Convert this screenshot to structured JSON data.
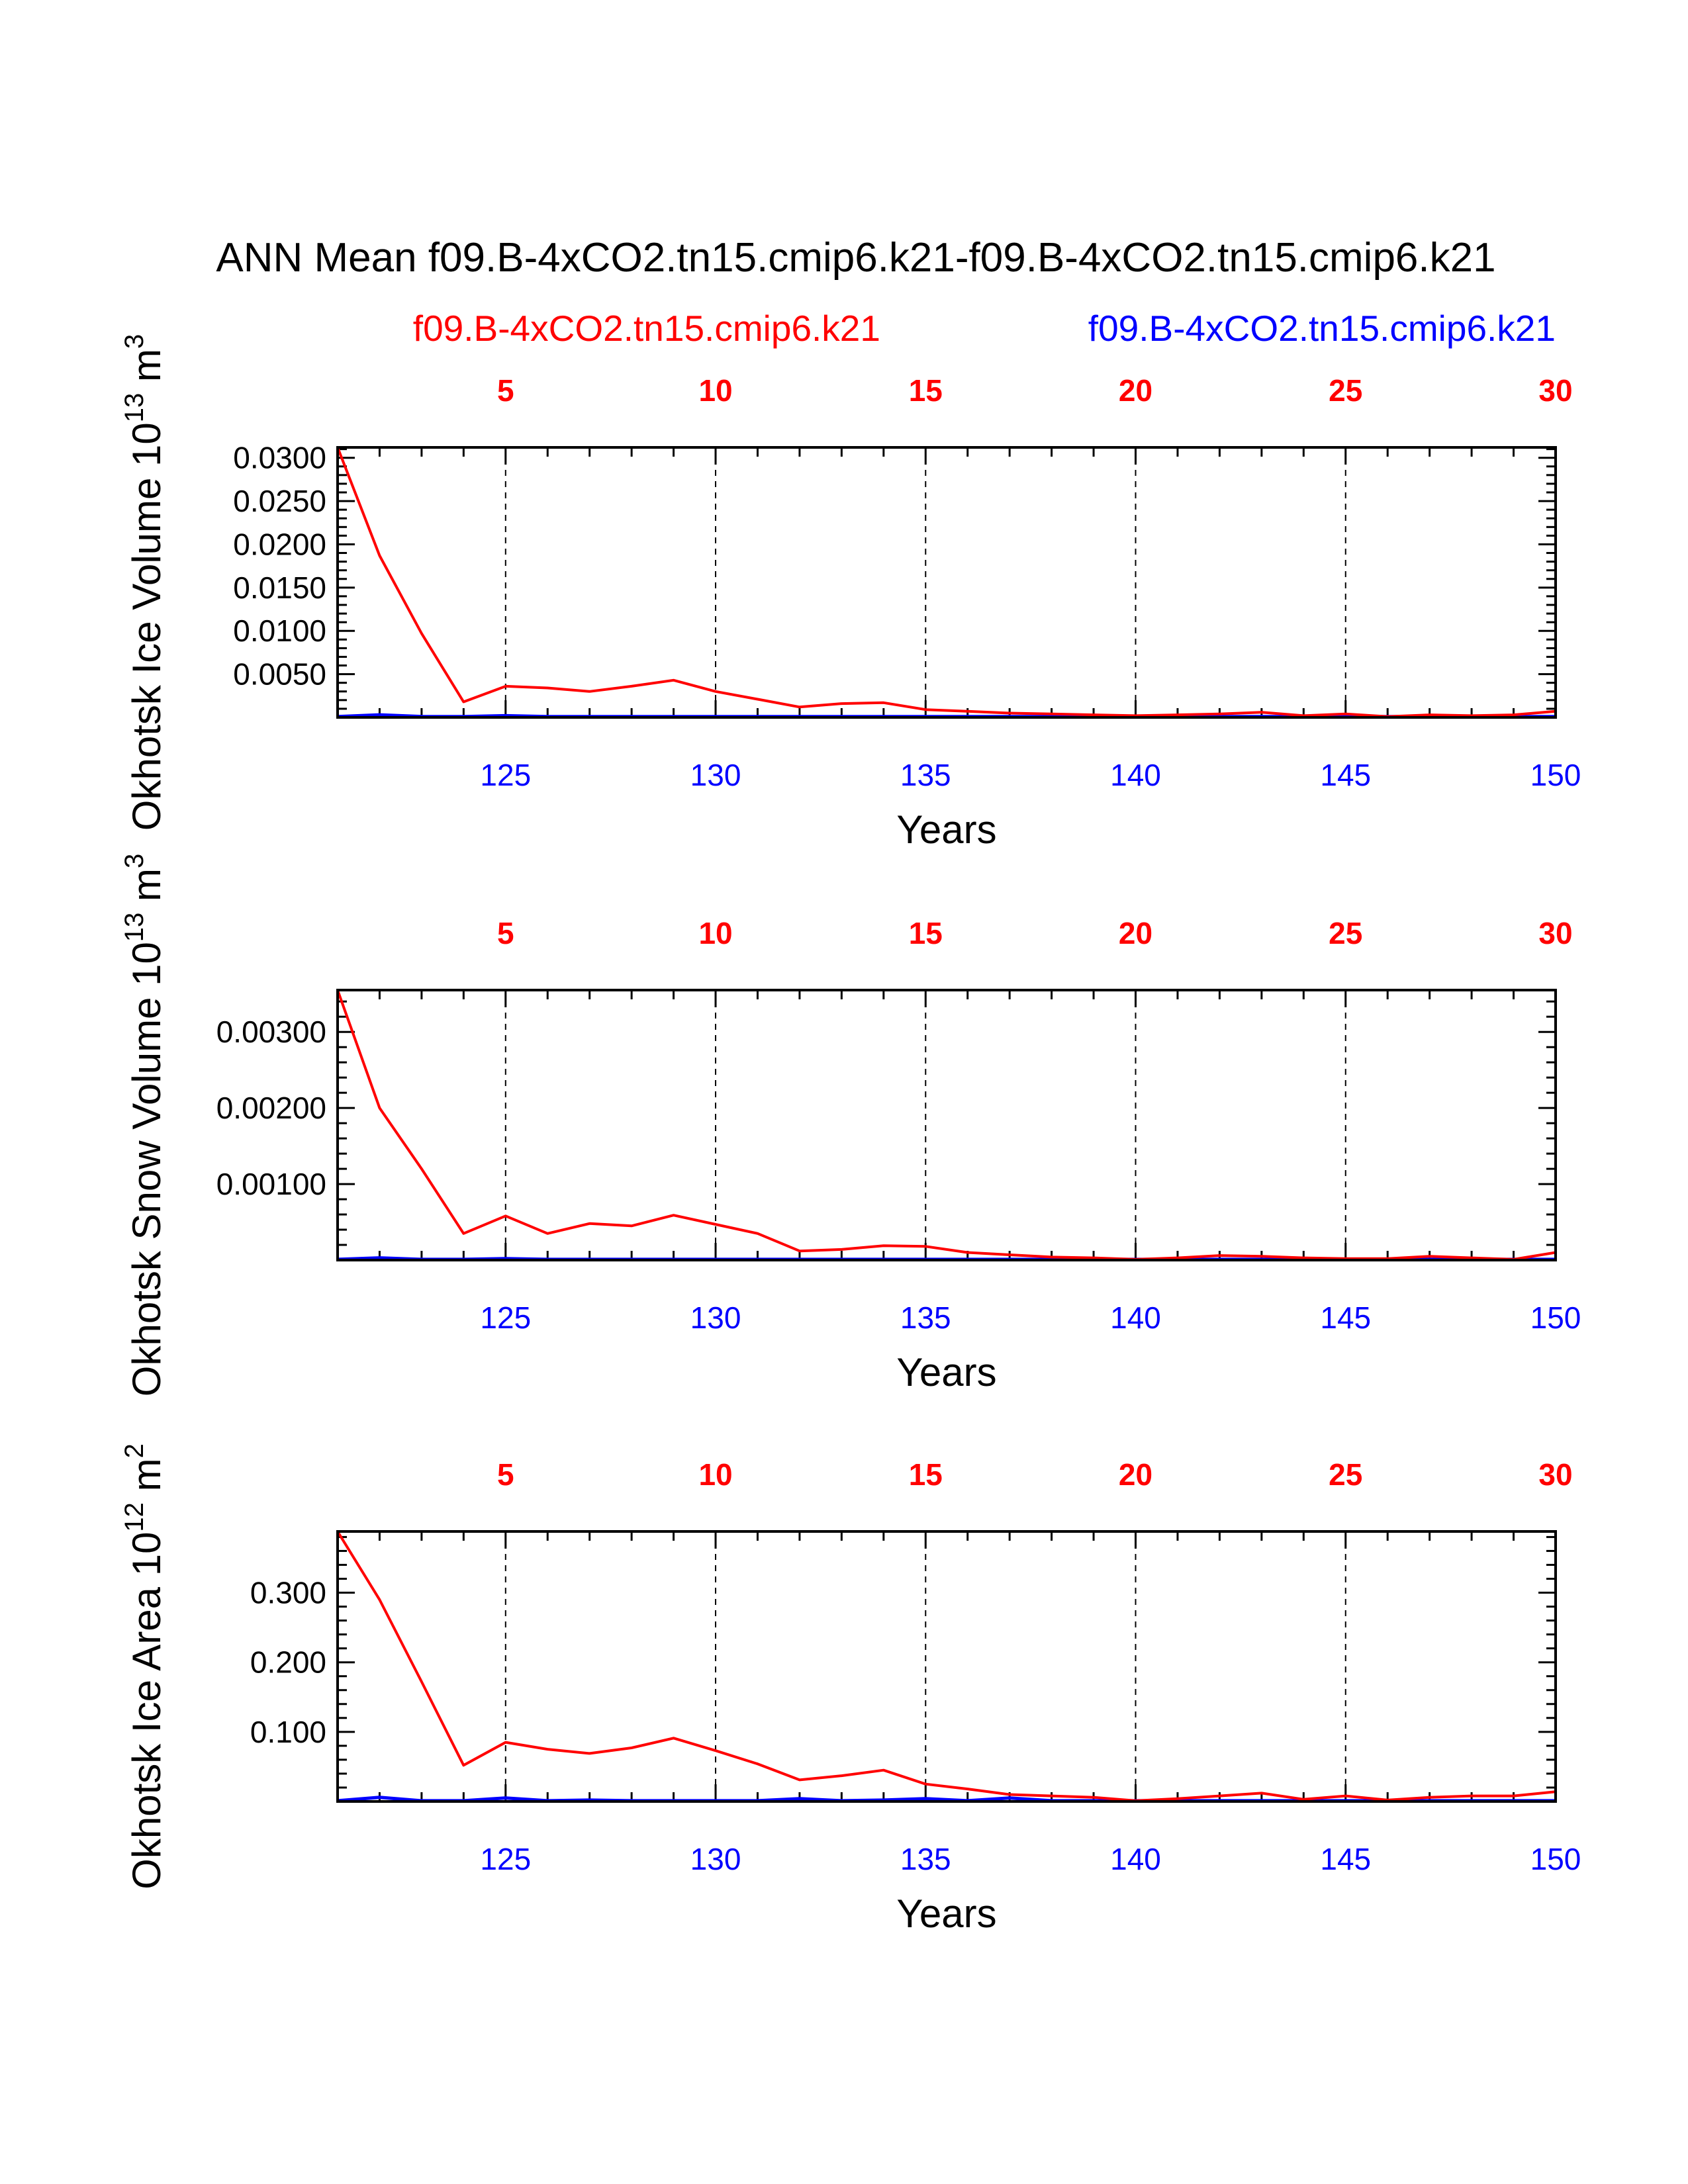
{
  "title": "ANN Mean f09.B-4xCO2.tn15.cmip6.k21-f09.B-4xCO2.tn15.cmip6.k21",
  "legend": {
    "red_label": "f09.B-4xCO2.tn15.cmip6.k21",
    "blue_label": "f09.B-4xCO2.tn15.cmip6.k21"
  },
  "colors": {
    "red": "#ff0000",
    "blue": "#0000ff",
    "axis": "#000000"
  },
  "chart_data": [
    {
      "type": "line",
      "title": "ANN Mean f09.B-4xCO2.tn15.cmip6.k21-f09.B-4xCO2.tn15.cmip6.k21",
      "ylabel": "Okhotsk Ice Volume 10",
      "ylabel_exp": "13",
      "ylabel_unit": "m",
      "ylabel_unit_exp": "3",
      "xlabel": "Years",
      "xlim": [
        121,
        150
      ],
      "ylim": [
        0,
        0.0312
      ],
      "yticks": [
        0.005,
        0.01,
        0.015,
        0.02,
        0.025,
        0.03
      ],
      "ytick_labels": [
        "0.0050",
        "0.0100",
        "0.0150",
        "0.0200",
        "0.0250",
        "0.0300"
      ],
      "bottom_ticks": [
        125,
        130,
        135,
        140,
        145,
        150
      ],
      "bottom_tick_labels": [
        "125",
        "130",
        "135",
        "140",
        "145",
        "150"
      ],
      "top_ticks": [
        125,
        130,
        135,
        140,
        145,
        150
      ],
      "top_tick_labels": [
        "5",
        "10",
        "15",
        "20",
        "25",
        "30"
      ],
      "grid": "dashed vertical lines at major ticks",
      "x": [
        121,
        122,
        123,
        124,
        125,
        126,
        127,
        128,
        129,
        130,
        131,
        132,
        133,
        134,
        135,
        136,
        137,
        138,
        139,
        140,
        141,
        142,
        143,
        144,
        145,
        146,
        147,
        148,
        149,
        150
      ],
      "series": [
        {
          "name": "f09.B-4xCO2.tn15.cmip6.k21",
          "color": "red",
          "values": [
            0.0312,
            0.0187,
            0.0097,
            0.0018,
            0.0036,
            0.0034,
            0.003,
            0.0036,
            0.0043,
            0.003,
            0.0021,
            0.0012,
            0.0016,
            0.0017,
            0.0009,
            0.0007,
            0.0005,
            0.0004,
            0.0003,
            0.0002,
            0.0003,
            0.0004,
            0.0006,
            0.0002,
            0.0004,
            0.0001,
            0.0003,
            0.0002,
            0.0003,
            0.0007
          ]
        },
        {
          "name": "f09.B-4xCO2.tn15.cmip6.k21",
          "color": "blue",
          "values": [
            0.0001,
            0.0003,
            0.0001,
            0.0001,
            0.0002,
            0.0001,
            0.0001,
            0.0001,
            0.0001,
            0.0001,
            0.0001,
            0.0001,
            0.0001,
            0.0001,
            0.0001,
            0.0001,
            0.0001,
            0.0001,
            0.0001,
            0.0001,
            0.0001,
            0.0001,
            0.0001,
            0.0001,
            0.0001,
            0.0001,
            0.0001,
            0.0001,
            0.0001,
            0.0001
          ]
        }
      ]
    },
    {
      "type": "line",
      "ylabel": "Okhotsk Snow Volume 10",
      "ylabel_exp": "13",
      "ylabel_unit": "m",
      "ylabel_unit_exp": "3",
      "xlabel": "Years",
      "xlim": [
        121,
        150
      ],
      "ylim": [
        0,
        0.00355
      ],
      "yticks": [
        0.001,
        0.002,
        0.003
      ],
      "ytick_labels": [
        "0.00100",
        "0.00200",
        "0.00300"
      ],
      "bottom_ticks": [
        125,
        130,
        135,
        140,
        145,
        150
      ],
      "bottom_tick_labels": [
        "125",
        "130",
        "135",
        "140",
        "145",
        "150"
      ],
      "top_ticks": [
        125,
        130,
        135,
        140,
        145,
        150
      ],
      "top_tick_labels": [
        "5",
        "10",
        "15",
        "20",
        "25",
        "30"
      ],
      "grid": "dashed vertical lines at major ticks",
      "x": [
        121,
        122,
        123,
        124,
        125,
        126,
        127,
        128,
        129,
        130,
        131,
        132,
        133,
        134,
        135,
        136,
        137,
        138,
        139,
        140,
        141,
        142,
        143,
        144,
        145,
        146,
        147,
        148,
        149,
        150
      ],
      "series": [
        {
          "name": "f09.B-4xCO2.tn15.cmip6.k21",
          "color": "red",
          "values": [
            0.00355,
            0.002,
            0.0012,
            0.00035,
            0.00058,
            0.00035,
            0.00048,
            0.00045,
            0.00059,
            0.00047,
            0.00035,
            0.00012,
            0.00014,
            0.00019,
            0.00018,
            0.0001,
            7e-05,
            4e-05,
            3e-05,
            1e-05,
            3e-05,
            6e-05,
            5e-05,
            3e-05,
            2e-05,
            2e-05,
            5e-05,
            3e-05,
            1e-05,
            0.0001
          ]
        },
        {
          "name": "f09.B-4xCO2.tn15.cmip6.k21",
          "color": "blue",
          "values": [
            1e-05,
            3e-05,
            1e-05,
            1e-05,
            2e-05,
            1e-05,
            1e-05,
            1e-05,
            1e-05,
            1e-05,
            1e-05,
            1e-05,
            1e-05,
            1e-05,
            1e-05,
            1e-05,
            1e-05,
            1e-05,
            1e-05,
            1e-05,
            1e-05,
            1e-05,
            1e-05,
            1e-05,
            1e-05,
            1e-05,
            1e-05,
            1e-05,
            1e-05,
            1e-05
          ]
        }
      ]
    },
    {
      "type": "line",
      "ylabel": "Okhotsk Ice Area 10",
      "ylabel_exp": "12",
      "ylabel_unit": "m",
      "ylabel_unit_exp": "2",
      "xlabel": "Years",
      "xlim": [
        121,
        150
      ],
      "ylim": [
        0,
        0.388
      ],
      "yticks": [
        0.1,
        0.2,
        0.3
      ],
      "ytick_labels": [
        "0.100",
        "0.200",
        "0.300"
      ],
      "bottom_ticks": [
        125,
        130,
        135,
        140,
        145,
        150
      ],
      "bottom_tick_labels": [
        "125",
        "130",
        "135",
        "140",
        "145",
        "150"
      ],
      "top_ticks": [
        125,
        130,
        135,
        140,
        145,
        150
      ],
      "top_tick_labels": [
        "5",
        "10",
        "15",
        "20",
        "25",
        "30"
      ],
      "grid": "dashed vertical lines at major ticks",
      "x": [
        121,
        122,
        123,
        124,
        125,
        126,
        127,
        128,
        129,
        130,
        131,
        132,
        133,
        134,
        135,
        136,
        137,
        138,
        139,
        140,
        141,
        142,
        143,
        144,
        145,
        146,
        147,
        148,
        149,
        150
      ],
      "series": [
        {
          "name": "f09.B-4xCO2.tn15.cmip6.k21",
          "color": "red",
          "values": [
            0.388,
            0.29,
            0.172,
            0.052,
            0.085,
            0.075,
            0.069,
            0.077,
            0.091,
            0.073,
            0.054,
            0.031,
            0.037,
            0.045,
            0.025,
            0.018,
            0.01,
            0.008,
            0.006,
            0.001,
            0.004,
            0.008,
            0.012,
            0.003,
            0.008,
            0.002,
            0.006,
            0.008,
            0.008,
            0.014
          ]
        },
        {
          "name": "f09.B-4xCO2.tn15.cmip6.k21",
          "color": "blue",
          "values": [
            0.001,
            0.006,
            0.001,
            0.001,
            0.005,
            0.001,
            0.002,
            0.001,
            0.001,
            0.001,
            0.001,
            0.004,
            0.001,
            0.002,
            0.004,
            0.001,
            0.005,
            0.001,
            0.001,
            0.001,
            0.001,
            0.001,
            0.001,
            0.001,
            0.001,
            0.001,
            0.001,
            0.001,
            0.001,
            0.001
          ]
        }
      ]
    }
  ]
}
